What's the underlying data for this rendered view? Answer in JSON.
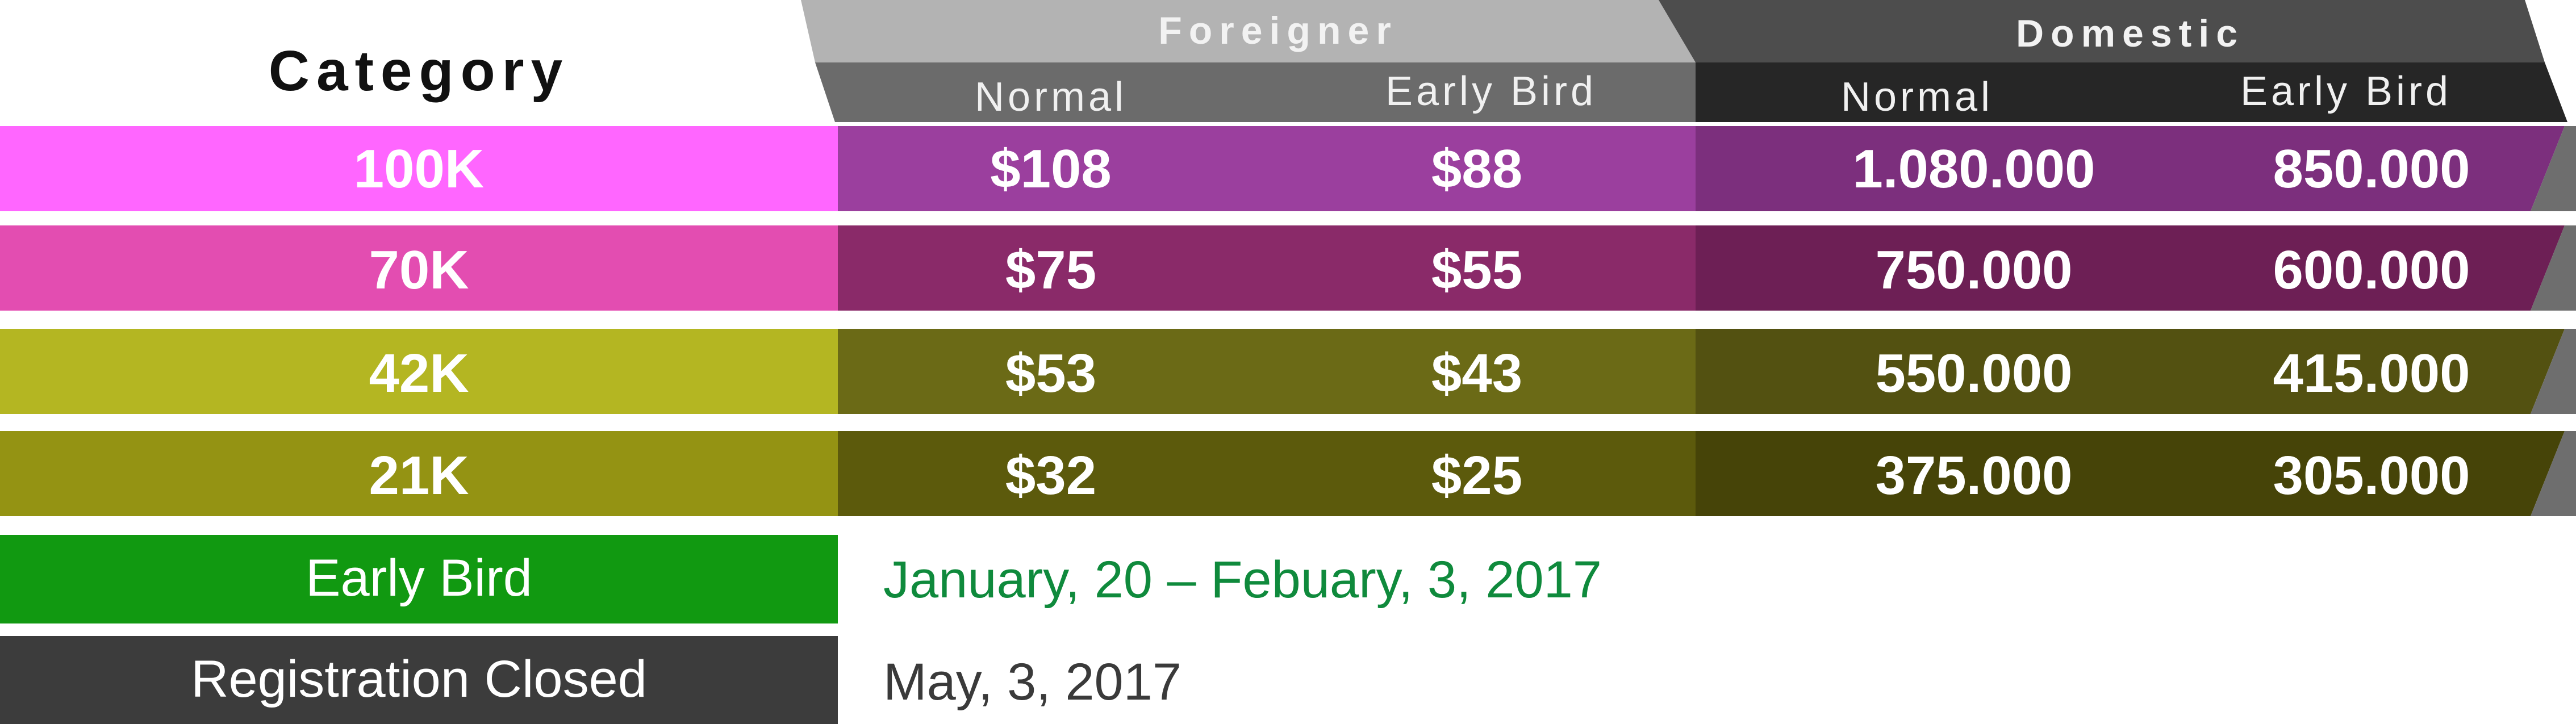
{
  "header": {
    "category_label": "Category",
    "groups": [
      {
        "label": "Foreigner",
        "subheaders": [
          "Normal",
          "Early Bird"
        ]
      },
      {
        "label": "Domestic",
        "subheaders": [
          "Normal",
          "Early Bird"
        ]
      }
    ]
  },
  "rows": [
    {
      "category": "100K",
      "foreigner_normal": "$108",
      "foreigner_early": "$88",
      "domestic_normal": "1.080.000",
      "domestic_early": "850.000"
    },
    {
      "category": "70K",
      "foreigner_normal": "$75",
      "foreigner_early": "$55",
      "domestic_normal": "750.000",
      "domestic_early": "600.000"
    },
    {
      "category": "42K",
      "foreigner_normal": "$53",
      "foreigner_early": "$43",
      "domestic_normal": "550.000",
      "domestic_early": "415.000"
    },
    {
      "category": "21K",
      "foreigner_normal": "$32",
      "foreigner_early": "$25",
      "domestic_normal": "375.000",
      "domestic_early": "305.000"
    }
  ],
  "legend": [
    {
      "label": "Early Bird",
      "date": "January, 20 – Febuary, 3, 2017"
    },
    {
      "label": "Registration Closed",
      "date": "May, 3, 2017"
    }
  ],
  "colors": {
    "header_foreigner_top": "#b3b3b3",
    "header_foreigner_sub": "#6b6b6b",
    "header_domestic_top": "#4d4d4d",
    "header_domestic_sub": "#262626",
    "row_100k": [
      "#ff66ff",
      "#9b3f9e",
      "#7c2f7d"
    ],
    "row_70k": [
      "#e34db1",
      "#8a2a69",
      "#6d1f55"
    ],
    "row_42k": [
      "#b4b622",
      "#6b6a16",
      "#535111"
    ],
    "row_21k": [
      "#949313",
      "#5c5a0c",
      "#464408"
    ],
    "legend_early_bird": "#119911",
    "legend_closed": "#3c3c3c",
    "date_early_bird": "#0f8a3c",
    "date_closed": "#3a3a3a"
  }
}
